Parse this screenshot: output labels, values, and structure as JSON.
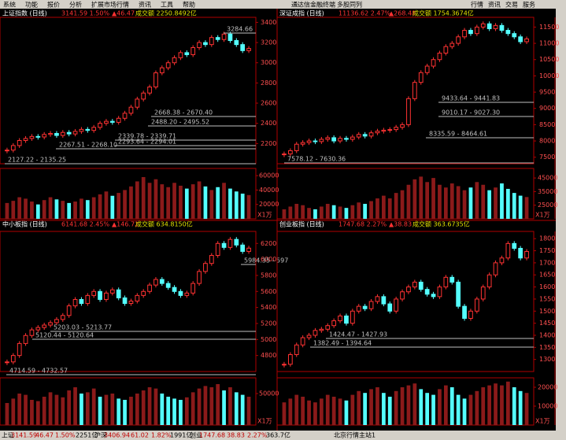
{
  "menu": [
    "系统",
    "功能",
    "报价",
    "分析",
    "扩展市场行情",
    "资讯",
    "工具",
    "帮助"
  ],
  "title": "通达信金融终端",
  "subtitle": "多股同列",
  "right_menu": [
    "行情",
    "资讯",
    "交易",
    "服务"
  ],
  "panels": [
    {
      "name": "上证指数 (日线)",
      "quote": "3141.59 1.50%",
      "change": "▲46.47",
      "amount": "成交额 2250.8492亿",
      "ylim": [
        2000,
        3450
      ],
      "yticks": [
        2200,
        2400,
        2600,
        2800,
        3000,
        3200,
        3400
      ],
      "close": [
        2135,
        2180,
        2230,
        2250,
        2270,
        2265,
        2290,
        2300,
        2280,
        2310,
        2295,
        2320,
        2340,
        2330,
        2360,
        2400,
        2420,
        2410,
        2450,
        2500,
        2560,
        2640,
        2700,
        2760,
        2900,
        2950,
        3000,
        3050,
        3100,
        3080,
        3150,
        3200,
        3180,
        3250,
        3230,
        3284,
        3220,
        3180,
        3120,
        3141
      ],
      "annotations": [
        "3284.66",
        "2668.38 - 2670.40",
        "2488.20 - 2495.52",
        "2339.78 - 2339.71",
        "2293.64 - 2294.01",
        "2267.51 - 2268.10",
        "2127.22 - 2135.25"
      ],
      "vol_ylim": [
        0,
        70000
      ],
      "vol_ticks": [
        20000,
        40000,
        60000
      ],
      "vol_unit": "X1万",
      "volume": [
        22000,
        25000,
        30000,
        28000,
        24000,
        20000,
        26000,
        30000,
        27000,
        25000,
        22000,
        24000,
        28000,
        26000,
        30000,
        34000,
        38000,
        32000,
        36000,
        40000,
        45000,
        52000,
        58000,
        50000,
        55000,
        48000,
        44000,
        50000,
        46000,
        42000,
        48000,
        52000,
        45000,
        40000,
        44000,
        50000,
        42000,
        38000,
        35000,
        33000
      ]
    },
    {
      "name": "深证成指 (日线)",
      "quote": "11136.62 2.47%",
      "change": "▲268.48",
      "amount": "成交额 1754.3674亿",
      "ylim": [
        7300,
        11800
      ],
      "yticks": [
        7500,
        8000,
        8500,
        9000,
        9500,
        10000,
        10500,
        11000,
        11500
      ],
      "close": [
        7600,
        7700,
        7900,
        7950,
        8000,
        7980,
        8050,
        8100,
        8000,
        8080,
        8050,
        8120,
        8200,
        8150,
        8250,
        8300,
        8330,
        8350,
        8420,
        8500,
        9300,
        9800,
        10100,
        10300,
        10500,
        10700,
        10900,
        11000,
        11200,
        11400,
        11300,
        11500,
        11600,
        11450,
        11550,
        11400,
        11300,
        11200,
        11050,
        11136
      ],
      "annotations": [
        "9433.64 - 9441.83",
        "9010.17 - 9027.30",
        "8335.59 - 8464.61",
        "7578.12 - 7630.36"
      ],
      "vol_ylim": [
        15000,
        52000
      ],
      "vol_ticks": [
        25000,
        35000,
        45000
      ],
      "vol_unit": "X1万",
      "volume": [
        22000,
        24000,
        26000,
        25000,
        23000,
        22000,
        24000,
        26000,
        25000,
        24000,
        23000,
        25000,
        27000,
        26000,
        28000,
        30000,
        32000,
        30000,
        34000,
        36000,
        40000,
        44000,
        46000,
        42000,
        45000,
        40000,
        38000,
        41000,
        39000,
        36000,
        38000,
        42000,
        40000,
        36000,
        38000,
        41000,
        37000,
        34000,
        32000,
        31000
      ]
    },
    {
      "name": "中小板指 (日线)",
      "quote": "6141.68 2.45%",
      "change": "▲146.72",
      "amount": "成交额 634.8150亿",
      "ylim": [
        4600,
        6350
      ],
      "yticks": [
        4800,
        5000,
        5200,
        5400,
        5600,
        5800,
        6000,
        6200
      ],
      "close": [
        4720,
        4800,
        4950,
        5050,
        5120,
        5150,
        5180,
        5210,
        5250,
        5300,
        5420,
        5500,
        5450,
        5550,
        5600,
        5500,
        5580,
        5620,
        5520,
        5450,
        5480,
        5550,
        5600,
        5680,
        5750,
        5700,
        5650,
        5600,
        5550,
        5580,
        5700,
        5850,
        5950,
        6050,
        6200,
        6150,
        6250,
        6180,
        6100,
        6141
      ],
      "annotations": [
        "5984.35 - 597",
        "5203.03 - 5213.77",
        "5120.44 - 5120.64",
        "4714.59 - 4732.57"
      ],
      "vol_ylim": [
        0,
        75000
      ],
      "vol_ticks": [
        50000
      ],
      "vol_unit": "X1万",
      "volume": [
        35000,
        42000,
        50000,
        48000,
        40000,
        38000,
        45000,
        52000,
        48000,
        44000,
        55000,
        60000,
        50000,
        52000,
        58000,
        45000,
        48000,
        50000,
        42000,
        40000,
        45000,
        50000,
        55000,
        60000,
        58000,
        50000,
        45000,
        42000,
        40000,
        44000,
        52000,
        58000,
        62000,
        60000,
        65000,
        55000,
        60000,
        52000,
        48000,
        45000
      ]
    },
    {
      "name": "创业板指 (日线)",
      "quote": "1747.68 2.27%",
      "change": "▲38.83",
      "amount": "成交额 363.6735亿",
      "ylim": [
        1250,
        1830
      ],
      "yticks": [
        1300,
        1350,
        1400,
        1450,
        1500,
        1550,
        1600,
        1650,
        1700,
        1750,
        1800
      ],
      "close": [
        1280,
        1320,
        1360,
        1390,
        1400,
        1420,
        1425,
        1440,
        1460,
        1480,
        1450,
        1500,
        1520,
        1510,
        1540,
        1560,
        1530,
        1500,
        1550,
        1580,
        1600,
        1620,
        1590,
        1570,
        1560,
        1600,
        1640,
        1620,
        1520,
        1470,
        1500,
        1550,
        1600,
        1650,
        1700,
        1720,
        1780,
        1760,
        1720,
        1747
      ],
      "annotations": [
        "1424.47 - 1427.93",
        "1382.49 - 1394.64"
      ],
      "vol_ylim": [
        0,
        25000
      ],
      "vol_ticks": [
        10000,
        20000
      ],
      "vol_unit": "X1万",
      "volume": [
        12000,
        14000,
        16000,
        15000,
        13000,
        12000,
        14000,
        16000,
        15000,
        14000,
        13000,
        16000,
        18000,
        17000,
        19000,
        20000,
        17000,
        15000,
        18000,
        20000,
        21000,
        22000,
        19000,
        17000,
        16000,
        19000,
        21000,
        20000,
        16000,
        14000,
        16000,
        18000,
        20000,
        21000,
        22000,
        21000,
        23000,
        20000,
        18000,
        17000
      ]
    }
  ],
  "status": [
    "上证",
    "3141.59",
    "46.47",
    "1.50%",
    "2251亿",
    "沪深",
    "3406.94",
    "61.02",
    "1.82%",
    "1991亿",
    "创业",
    "1747.68",
    "38.83",
    "2.27%",
    "363.7亿",
    "北京行情主站1"
  ]
}
